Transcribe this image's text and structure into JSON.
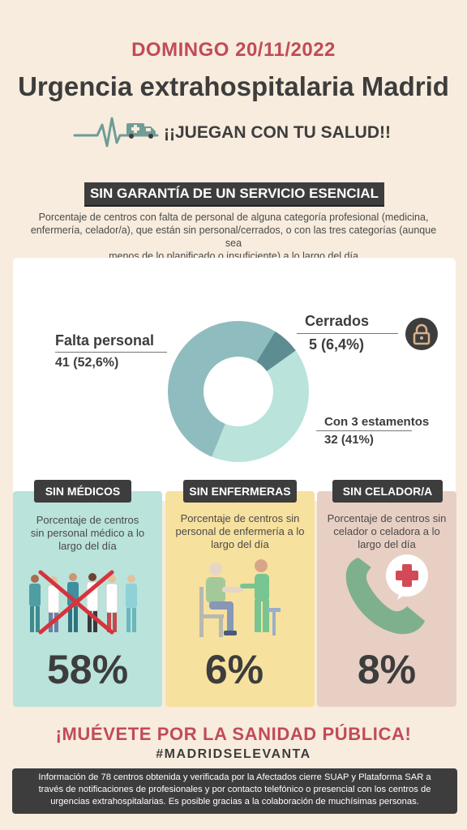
{
  "header": {
    "date": "DOMINGO 20/11/2022",
    "title": "Urgencia extrahospitalaria Madrid",
    "tagline": "¡¡JUEGAN CON TU SALUD!!"
  },
  "section": {
    "badge": "SIN GARANTÍA DE UN SERVICIO  ESENCIAL",
    "description_lines": [
      "Porcentaje de centros con falta de personal de alguna categoría profesional (medicina,",
      "enfermería, celador/a), que están sin personal/cerrados, o con las tres categorías (aunque sea",
      "menos de lo planificado o insuficiente) a lo largo del día"
    ]
  },
  "chart_data": {
    "type": "pie",
    "donut": true,
    "slices": [
      {
        "label": "Cerrados",
        "value_text": "5 (6,4%)",
        "count": 5,
        "percent": 6.4,
        "color": "#5e8c93"
      },
      {
        "label": "Con 3 estamentos",
        "value_text": "32 (41%)",
        "count": 32,
        "percent": 41,
        "color": "#b9e3db"
      },
      {
        "label": "Falta personal",
        "value_text": "41 (52,6%)",
        "count": 41,
        "percent": 52.6,
        "color": "#8fbcbf"
      }
    ]
  },
  "cards": [
    {
      "badge": "SIN MÉDICOS",
      "text_lines": [
        "Porcentaje de centros",
        "sin personal médico a lo",
        "largo del día"
      ],
      "percent": "58%",
      "bg": "#b9e3db",
      "icon": "doctors-crossed-out-icon"
    },
    {
      "badge": "SIN ENFERMERAS",
      "text_lines": [
        "Porcentaje de centros sin",
        "personal de enfermería a lo",
        "largo del día"
      ],
      "percent": "6%",
      "bg": "#f7e19e",
      "icon": "nurse-with-patient-icon"
    },
    {
      "badge": "SIN CELADOR/A",
      "text_lines": [
        "Porcentaje de centros sin",
        "celador o celadora a lo",
        "largo del día"
      ],
      "percent": "8%",
      "bg": "#e8cfc4",
      "icon": "phone-medical-icon"
    }
  ],
  "cta": "¡MUÉVETE POR LA SANIDAD PÚBLICA!",
  "hashtag": "#MADRIDSELEVANTA",
  "footer_lines": [
    "Información de 78 centros obtenida y verificada por la Afectados cierre SUAP y Plataforma SAR a",
    "través de notificaciones de profesionales y por contacto telefónico o presencial con los centros de",
    "urgencias extrahospitalarias. Es posible gracias a la colaboración de muchísimas personas."
  ],
  "colors": {
    "accent": "#c24a58",
    "dark": "#3d3d3d",
    "background": "#f7ecdd"
  }
}
